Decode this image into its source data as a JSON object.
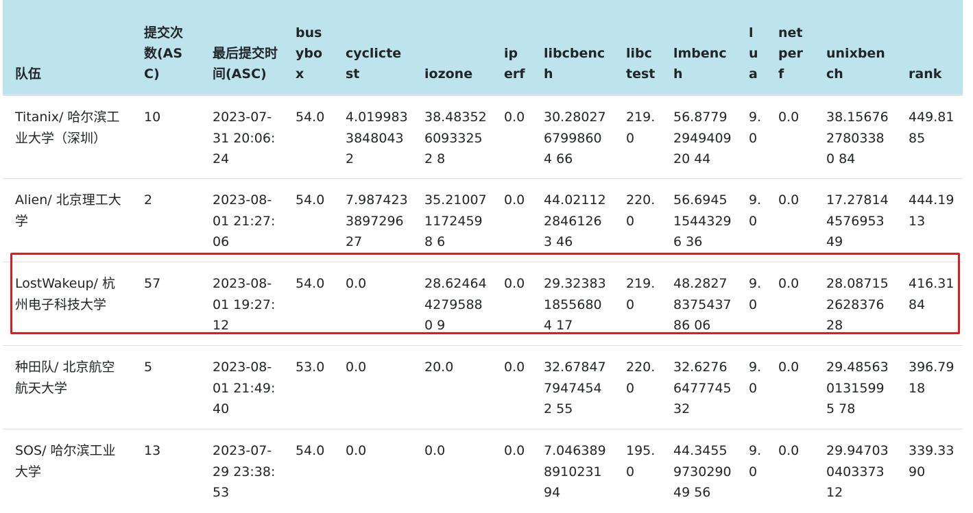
{
  "table": {
    "headers": [
      "队伍",
      "提交次数(ASC)",
      "最后提交时间(ASC)",
      "busybox",
      "cyclictest",
      "iozone",
      "iperf",
      "libcbench",
      "libctest",
      "lmbench",
      "lua",
      "netperf",
      "unixbench",
      "rank"
    ],
    "rows": [
      [
        "Titanix/ 哈尔滨工业大学（深圳）",
        "10",
        "2023-07-31 20:06:24",
        "54.0",
        "4.0199833848043 2",
        "38.4835260933252 8",
        "0.0",
        "30.2802767998604 66",
        "219.0",
        "56.8779294940920 44",
        "9.0",
        "0.0",
        "38.1567627803380 84",
        "449.8185"
      ],
      [
        "Alien/ 北京理工大学",
        "2",
        "2023-08-01 21:27:06",
        "54.0",
        "7.9874233897296 27",
        "35.2100711724598 6",
        "0.0",
        "44.0211228461263 46",
        "220.0",
        "56.694515443296 36",
        "9.0",
        "0.0",
        "17.27814457695349",
        "444.1913"
      ],
      [
        "LostWakeup/ 杭州电子科技大学",
        "57",
        "2023-08-01 19:27:12",
        "54.0",
        "0.0",
        "28.6246442795880 9",
        "0.0",
        "29.3238318556804 17",
        "219.0",
        "48.2827837543786 06",
        "9.0",
        "0.0",
        "28.08715262837628",
        "416.3184"
      ],
      [
        "种田队/ 北京航空航天大学",
        "5",
        "2023-08-01 21:49:40",
        "53.0",
        "0.0",
        "20.0",
        "0.0",
        "32.6784779474542 55",
        "220.0",
        "32.6276647774532",
        "9.0",
        "0.0",
        "29.4856301315995 78",
        "396.7918"
      ],
      [
        "SOS/ 哈尔滨工业大学",
        "13",
        "2023-07-29 23:38:53",
        "54.0",
        "0.0",
        "0.0",
        "0.0",
        "7.046389891023194",
        "195.0",
        "44.3455973029049 56",
        "9.0",
        "0.0",
        "29.94703040337312",
        "339.3390"
      ]
    ],
    "highlighted_row_index": 2
  },
  "colors": {
    "header_bg": "#bde3ec",
    "highlight_border": "#e21a1a"
  }
}
